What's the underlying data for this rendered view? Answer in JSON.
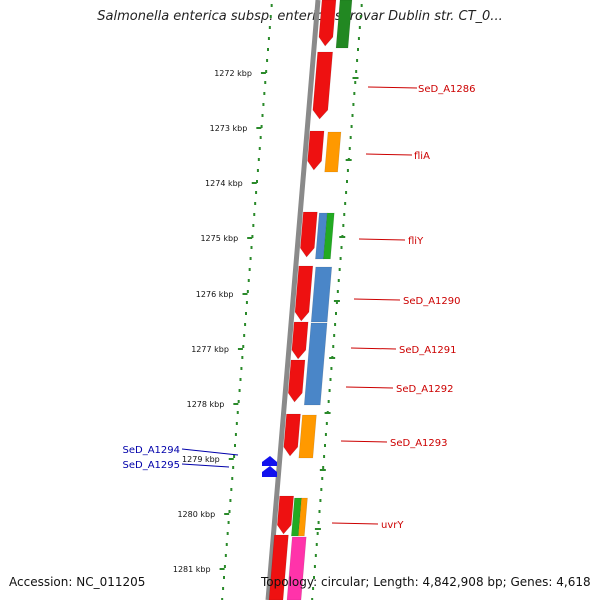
{
  "title": "Salmonella enterica subsp. enterica serovar Dublin str. CT_0...",
  "footer": {
    "accession": "Accession: NC_011205",
    "topology": "Topology: circular; Length: 4,842,908 bp; Genes: 4,618"
  },
  "colors": {
    "backbone": "#8a8a8a",
    "dots": "#2a8a2a",
    "red": "#ee1111",
    "orange": "#ff9900",
    "blue": "#4a86c8",
    "green": "#22aa22",
    "darkgreen": "#228822",
    "pink": "#ff33aa",
    "label_red": "#cc0000",
    "label_blue": "#0000aa",
    "marker_blue": "#1111ee"
  },
  "scale_labels": [
    "1272 kbp",
    "1273 kbp",
    "1274 kbp",
    "1275 kbp",
    "1276 kbp",
    "1277 kbp",
    "1278 kbp",
    "1279 kbp",
    "1280 kbp",
    "1281 kbp"
  ],
  "gene_labels_right": [
    "SeD_A1286",
    "fliA",
    "fliY",
    "SeD_A1290",
    "SeD_A1291",
    "SeD_A1292",
    "SeD_A1293",
    "uvrY"
  ],
  "gene_labels_left": [
    "SeD_A1294",
    "SeD_A1295"
  ]
}
